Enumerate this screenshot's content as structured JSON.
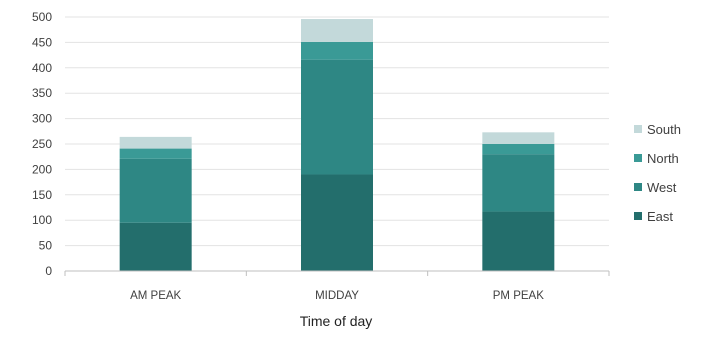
{
  "chart_data": {
    "type": "bar",
    "stacked": true,
    "categories": [
      "AM PEAK",
      "MIDDAY",
      "PM PEAK"
    ],
    "series": [
      {
        "name": "East",
        "values": [
          95,
          190,
          117
        ],
        "color": "#236e6c"
      },
      {
        "name": "West",
        "values": [
          126,
          226,
          113
        ],
        "color": "#2e8784"
      },
      {
        "name": "North",
        "values": [
          20,
          35,
          20
        ],
        "color": "#3a9a96"
      },
      {
        "name": "South",
        "values": [
          23,
          45,
          23
        ],
        "color": "#c3d9da"
      }
    ],
    "title": "",
    "xlabel": "Time of day",
    "ylabel": "",
    "ylim": [
      0,
      500
    ],
    "yticks": [
      0,
      50,
      100,
      150,
      200,
      250,
      300,
      350,
      400,
      450,
      500
    ],
    "grid": true,
    "legend_position": "right"
  }
}
